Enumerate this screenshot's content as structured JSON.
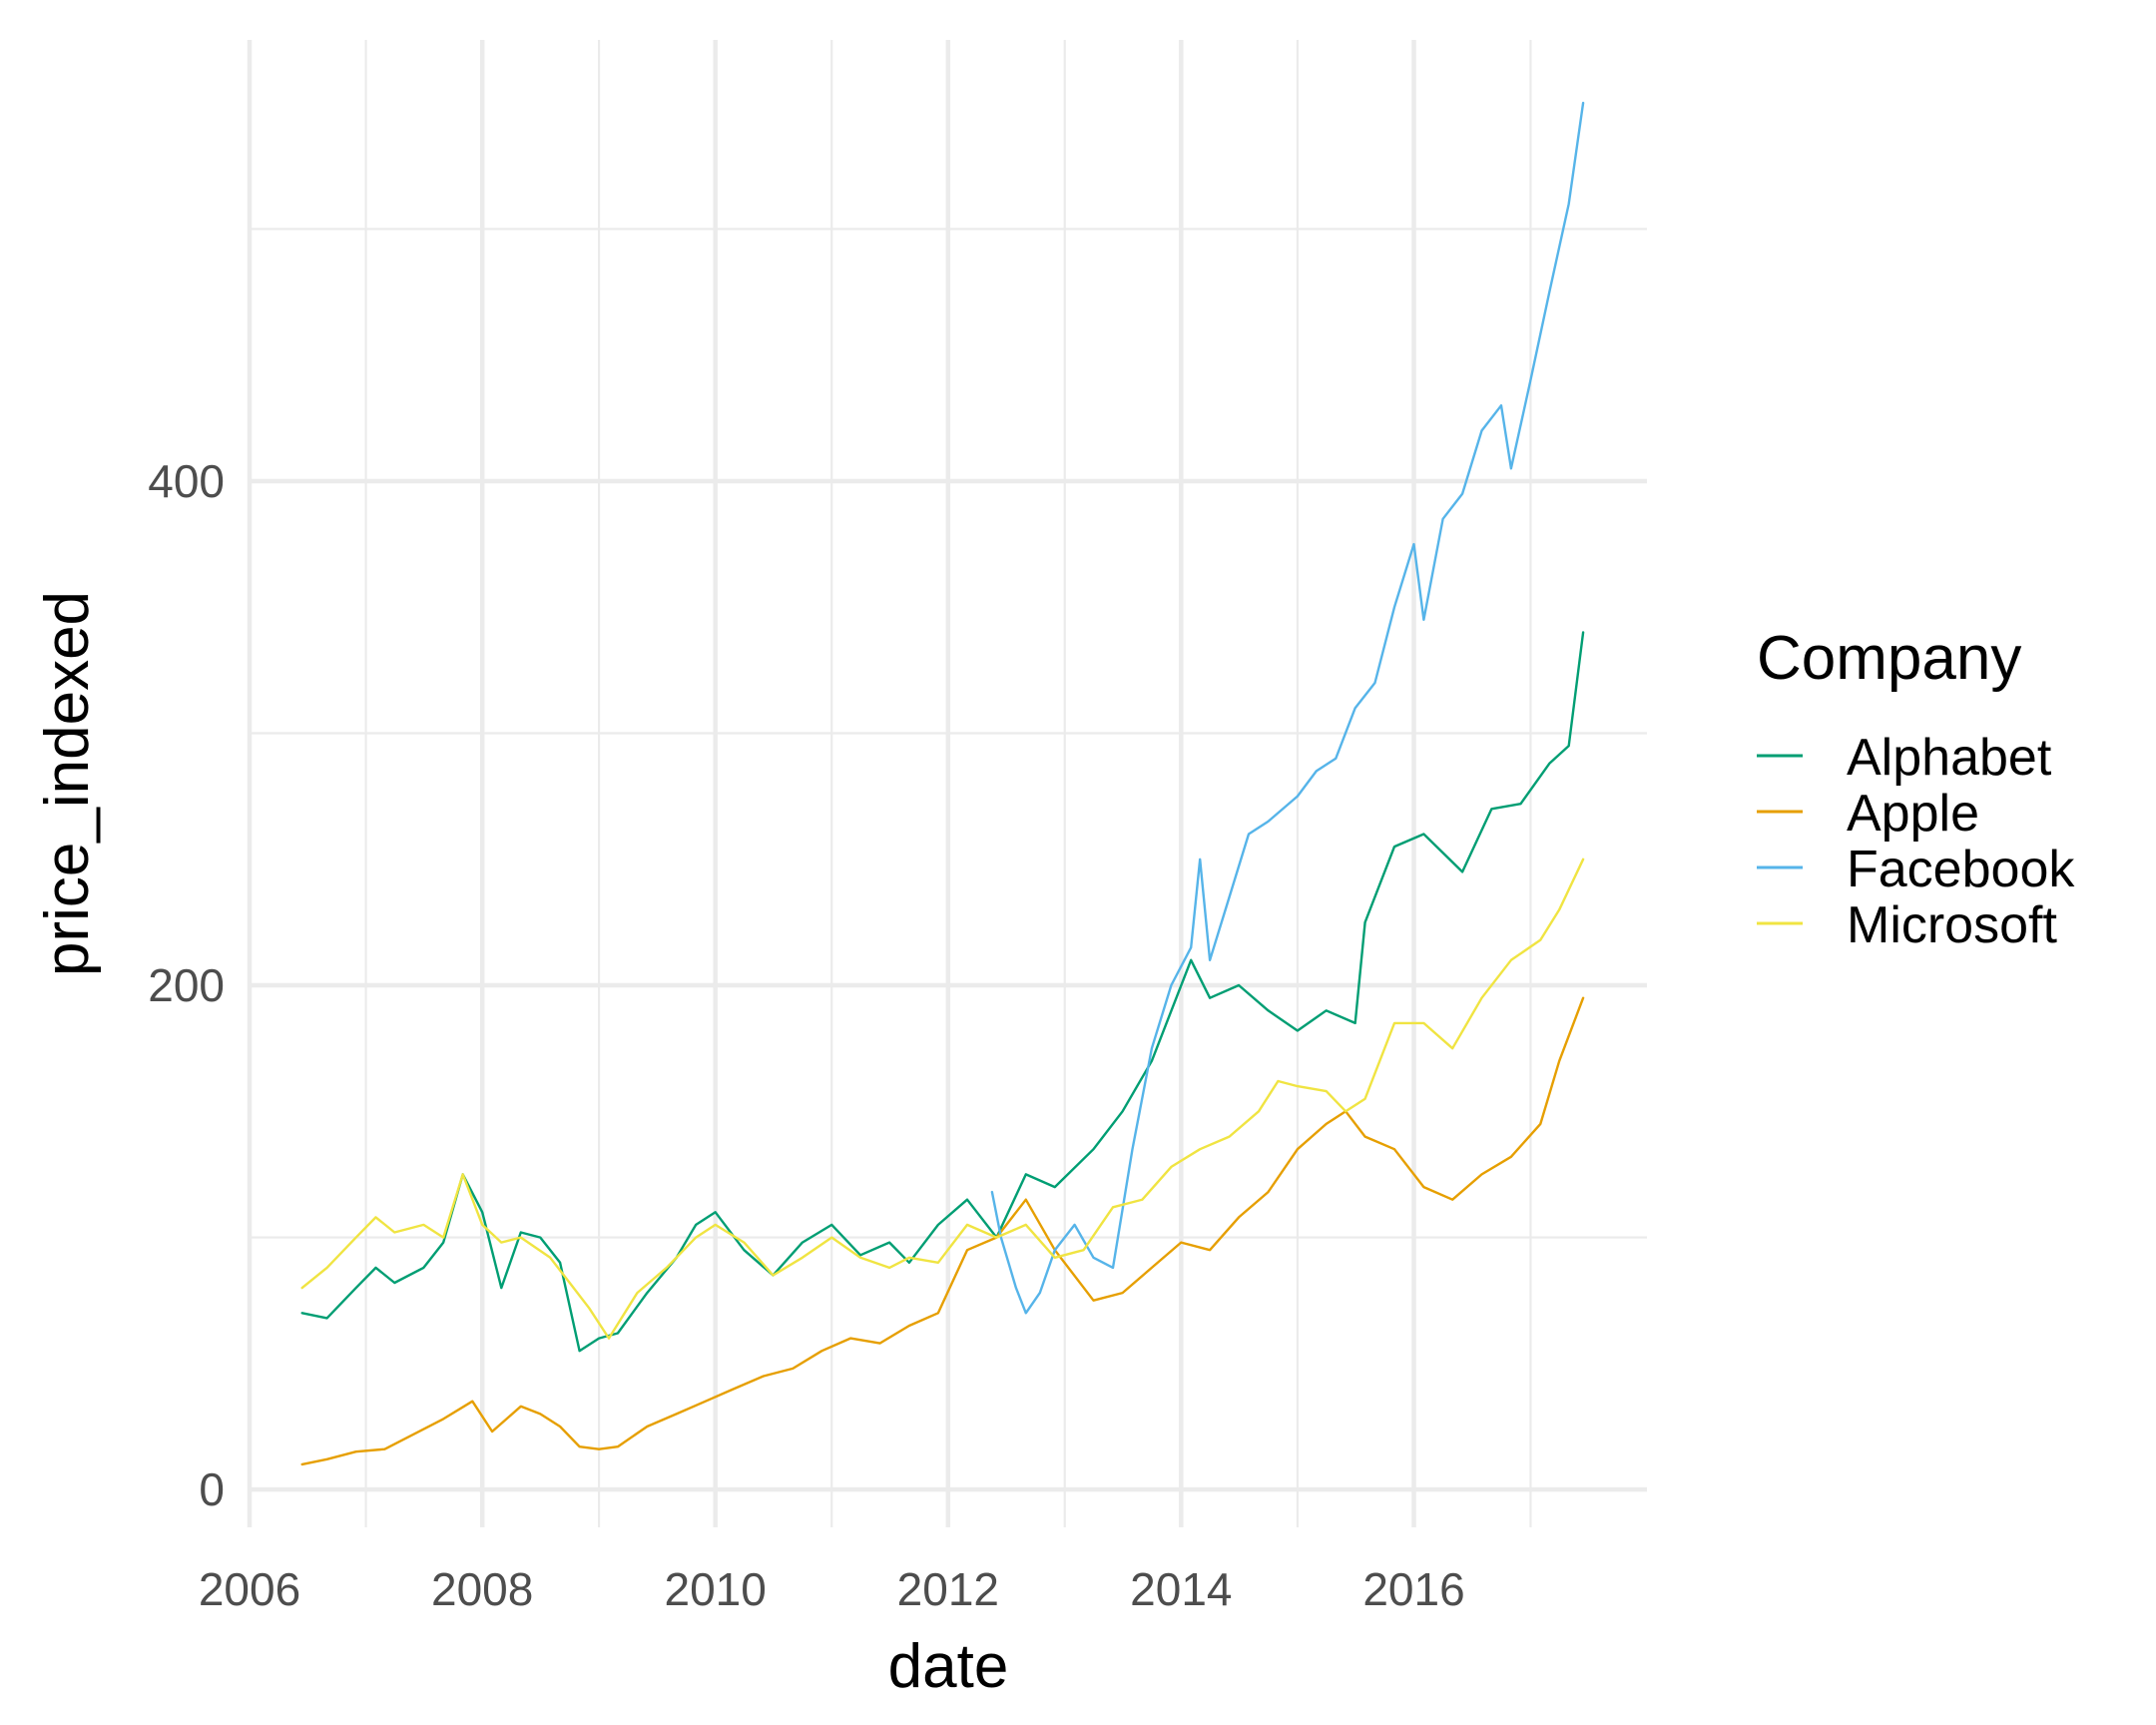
{
  "chart_data": {
    "type": "line",
    "title": "",
    "xlabel": "date",
    "ylabel": "price_indexed",
    "xlim": [
      "2006-01-01",
      "2018-01-01"
    ],
    "ylim": [
      -15,
      575
    ],
    "x_ticks": [
      "2006",
      "2008",
      "2010",
      "2012",
      "2014",
      "2016"
    ],
    "y_ticks": [
      0,
      200,
      400
    ],
    "grid": true,
    "legend": {
      "title": "Company",
      "placement": "right"
    },
    "series": [
      {
        "name": "Alphabet",
        "color": "#009E73",
        "points": [
          [
            "2006-06-15",
            70
          ],
          [
            "2006-09-01",
            68
          ],
          [
            "2006-12-01",
            80
          ],
          [
            "2007-02-01",
            88
          ],
          [
            "2007-04-01",
            82
          ],
          [
            "2007-07-01",
            88
          ],
          [
            "2007-09-01",
            98
          ],
          [
            "2007-11-01",
            125
          ],
          [
            "2008-01-01",
            110
          ],
          [
            "2008-03-01",
            80
          ],
          [
            "2008-05-01",
            102
          ],
          [
            "2008-07-01",
            100
          ],
          [
            "2008-09-01",
            90
          ],
          [
            "2008-11-01",
            55
          ],
          [
            "2009-01-01",
            60
          ],
          [
            "2009-03-01",
            62
          ],
          [
            "2009-06-01",
            78
          ],
          [
            "2009-09-01",
            92
          ],
          [
            "2009-11-01",
            105
          ],
          [
            "2010-01-01",
            110
          ],
          [
            "2010-04-01",
            95
          ],
          [
            "2010-07-01",
            85
          ],
          [
            "2010-10-01",
            98
          ],
          [
            "2011-01-01",
            105
          ],
          [
            "2011-04-01",
            93
          ],
          [
            "2011-07-01",
            98
          ],
          [
            "2011-09-01",
            90
          ],
          [
            "2011-12-01",
            105
          ],
          [
            "2012-03-01",
            115
          ],
          [
            "2012-06-01",
            100
          ],
          [
            "2012-09-01",
            125
          ],
          [
            "2012-12-01",
            120
          ],
          [
            "2013-04-01",
            135
          ],
          [
            "2013-07-01",
            150
          ],
          [
            "2013-10-01",
            170
          ],
          [
            "2014-02-01",
            210
          ],
          [
            "2014-04-01",
            195
          ],
          [
            "2014-07-01",
            200
          ],
          [
            "2014-10-01",
            190
          ],
          [
            "2015-01-01",
            182
          ],
          [
            "2015-04-01",
            190
          ],
          [
            "2015-07-01",
            185
          ],
          [
            "2015-08-01",
            225
          ],
          [
            "2015-11-01",
            255
          ],
          [
            "2016-02-01",
            260
          ],
          [
            "2016-06-01",
            245
          ],
          [
            "2016-09-01",
            270
          ],
          [
            "2016-12-01",
            272
          ],
          [
            "2017-03-01",
            288
          ],
          [
            "2017-05-01",
            295
          ],
          [
            "2017-06-15",
            340
          ]
        ]
      },
      {
        "name": "Apple",
        "color": "#E69F00",
        "points": [
          [
            "2006-06-15",
            10
          ],
          [
            "2006-09-01",
            12
          ],
          [
            "2006-12-01",
            15
          ],
          [
            "2007-03-01",
            16
          ],
          [
            "2007-06-01",
            22
          ],
          [
            "2007-09-01",
            28
          ],
          [
            "2007-12-01",
            35
          ],
          [
            "2008-02-01",
            23
          ],
          [
            "2008-05-01",
            33
          ],
          [
            "2008-07-01",
            30
          ],
          [
            "2008-09-01",
            25
          ],
          [
            "2008-11-01",
            17
          ],
          [
            "2009-01-01",
            16
          ],
          [
            "2009-03-01",
            17
          ],
          [
            "2009-06-01",
            25
          ],
          [
            "2009-09-01",
            30
          ],
          [
            "2009-12-01",
            35
          ],
          [
            "2010-03-01",
            40
          ],
          [
            "2010-06-01",
            45
          ],
          [
            "2010-09-01",
            48
          ],
          [
            "2010-12-01",
            55
          ],
          [
            "2011-03-01",
            60
          ],
          [
            "2011-06-01",
            58
          ],
          [
            "2011-09-01",
            65
          ],
          [
            "2011-12-01",
            70
          ],
          [
            "2012-03-01",
            95
          ],
          [
            "2012-06-01",
            100
          ],
          [
            "2012-09-01",
            115
          ],
          [
            "2012-12-01",
            95
          ],
          [
            "2013-04-01",
            75
          ],
          [
            "2013-07-01",
            78
          ],
          [
            "2013-10-01",
            88
          ],
          [
            "2014-01-01",
            98
          ],
          [
            "2014-04-01",
            95
          ],
          [
            "2014-07-01",
            108
          ],
          [
            "2014-10-01",
            118
          ],
          [
            "2015-01-01",
            135
          ],
          [
            "2015-04-01",
            145
          ],
          [
            "2015-06-01",
            150
          ],
          [
            "2015-08-01",
            140
          ],
          [
            "2015-11-01",
            135
          ],
          [
            "2016-02-01",
            120
          ],
          [
            "2016-05-01",
            115
          ],
          [
            "2016-08-01",
            125
          ],
          [
            "2016-11-01",
            132
          ],
          [
            "2017-02-01",
            145
          ],
          [
            "2017-04-01",
            170
          ],
          [
            "2017-06-15",
            195
          ]
        ]
      },
      {
        "name": "Facebook",
        "color": "#56B4E9",
        "points": [
          [
            "2012-05-18",
            118
          ],
          [
            "2012-06-15",
            100
          ],
          [
            "2012-08-01",
            80
          ],
          [
            "2012-09-01",
            70
          ],
          [
            "2012-10-15",
            78
          ],
          [
            "2012-12-01",
            95
          ],
          [
            "2013-02-01",
            105
          ],
          [
            "2013-04-01",
            92
          ],
          [
            "2013-06-01",
            88
          ],
          [
            "2013-08-01",
            135
          ],
          [
            "2013-10-01",
            175
          ],
          [
            "2013-12-01",
            200
          ],
          [
            "2014-02-01",
            215
          ],
          [
            "2014-03-01",
            250
          ],
          [
            "2014-04-01",
            210
          ],
          [
            "2014-06-01",
            235
          ],
          [
            "2014-08-01",
            260
          ],
          [
            "2014-10-01",
            265
          ],
          [
            "2015-01-01",
            275
          ],
          [
            "2015-03-01",
            285
          ],
          [
            "2015-05-01",
            290
          ],
          [
            "2015-07-01",
            310
          ],
          [
            "2015-09-01",
            320
          ],
          [
            "2015-11-01",
            350
          ],
          [
            "2016-01-01",
            375
          ],
          [
            "2016-02-01",
            345
          ],
          [
            "2016-04-01",
            385
          ],
          [
            "2016-06-01",
            395
          ],
          [
            "2016-08-01",
            420
          ],
          [
            "2016-10-01",
            430
          ],
          [
            "2016-11-01",
            405
          ],
          [
            "2017-01-01",
            440
          ],
          [
            "2017-03-01",
            475
          ],
          [
            "2017-05-01",
            510
          ],
          [
            "2017-06-15",
            550
          ]
        ]
      },
      {
        "name": "Microsoft",
        "color": "#F0E442",
        "points": [
          [
            "2006-06-15",
            80
          ],
          [
            "2006-09-01",
            88
          ],
          [
            "2006-12-01",
            100
          ],
          [
            "2007-02-01",
            108
          ],
          [
            "2007-04-01",
            102
          ],
          [
            "2007-07-01",
            105
          ],
          [
            "2007-09-01",
            100
          ],
          [
            "2007-11-01",
            125
          ],
          [
            "2008-01-01",
            105
          ],
          [
            "2008-03-01",
            98
          ],
          [
            "2008-05-01",
            100
          ],
          [
            "2008-08-01",
            92
          ],
          [
            "2008-10-01",
            82
          ],
          [
            "2008-12-01",
            72
          ],
          [
            "2009-02-01",
            60
          ],
          [
            "2009-05-01",
            78
          ],
          [
            "2009-08-01",
            88
          ],
          [
            "2009-11-01",
            100
          ],
          [
            "2010-01-01",
            105
          ],
          [
            "2010-04-01",
            98
          ],
          [
            "2010-07-01",
            85
          ],
          [
            "2010-10-01",
            92
          ],
          [
            "2011-01-01",
            100
          ],
          [
            "2011-04-01",
            92
          ],
          [
            "2011-07-01",
            88
          ],
          [
            "2011-09-01",
            92
          ],
          [
            "2011-12-01",
            90
          ],
          [
            "2012-03-01",
            105
          ],
          [
            "2012-06-01",
            100
          ],
          [
            "2012-09-01",
            105
          ],
          [
            "2012-12-01",
            92
          ],
          [
            "2013-03-01",
            95
          ],
          [
            "2013-06-01",
            112
          ],
          [
            "2013-09-01",
            115
          ],
          [
            "2013-12-01",
            128
          ],
          [
            "2014-03-01",
            135
          ],
          [
            "2014-06-01",
            140
          ],
          [
            "2014-09-01",
            150
          ],
          [
            "2014-11-01",
            162
          ],
          [
            "2015-01-01",
            160
          ],
          [
            "2015-04-01",
            158
          ],
          [
            "2015-06-01",
            150
          ],
          [
            "2015-08-01",
            155
          ],
          [
            "2015-11-01",
            185
          ],
          [
            "2016-02-01",
            185
          ],
          [
            "2016-05-01",
            175
          ],
          [
            "2016-08-01",
            195
          ],
          [
            "2016-11-01",
            210
          ],
          [
            "2017-02-01",
            218
          ],
          [
            "2017-04-01",
            230
          ],
          [
            "2017-06-15",
            250
          ]
        ]
      }
    ]
  }
}
